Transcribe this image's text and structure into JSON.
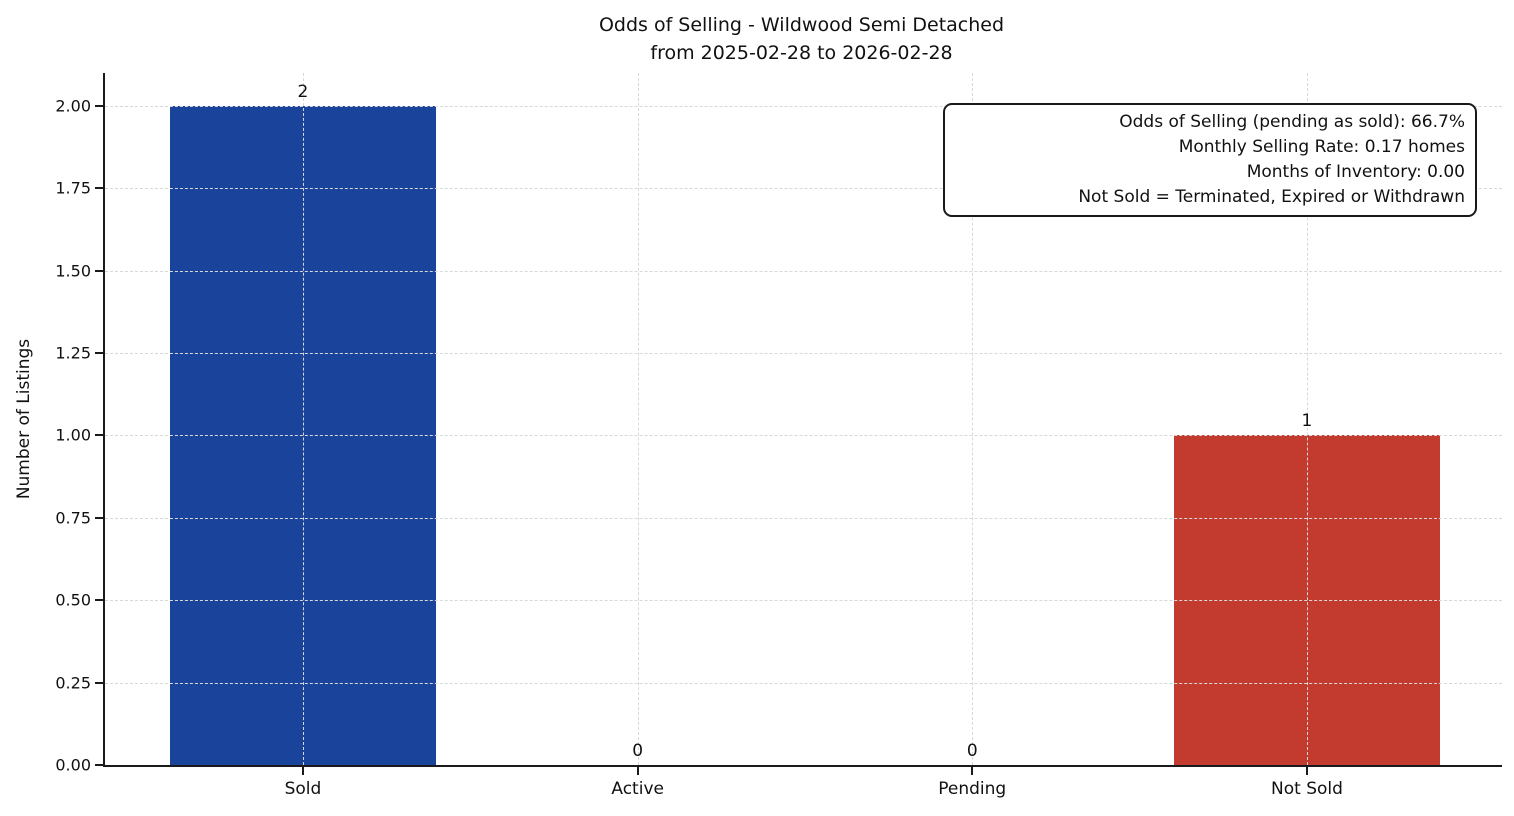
{
  "chart": {
    "title_line1": "Odds of Selling - Wildwood Semi Detached",
    "title_line2": "from 2025-02-28 to 2026-02-28",
    "ylabel": "Number of Listings"
  },
  "annotation_box": {
    "lines": [
      "Odds of Selling (pending as sold): 66.7%",
      "Monthly Selling Rate: 0.17 homes",
      "Months of Inventory: 0.00",
      "Not Sold = Terminated, Expired or Withdrawn"
    ]
  },
  "colors": {
    "sold_bar": "#1a449b",
    "not_sold_bar": "#c23b2e",
    "axis": "#1a1a1a",
    "grid": "#d8d8d8"
  },
  "chart_data": {
    "type": "bar",
    "title": "Odds of Selling - Wildwood Semi Detached\nfrom 2025-02-28 to 2026-02-28",
    "categories": [
      "Sold",
      "Active",
      "Pending",
      "Not Sold"
    ],
    "values": [
      2,
      0,
      0,
      1
    ],
    "bar_value_labels": [
      "2",
      "0",
      "0",
      "1"
    ],
    "bar_colors": [
      "#1a449b",
      null,
      null,
      "#c23b2e"
    ],
    "xlabel": "",
    "ylabel": "Number of Listings",
    "ylim": [
      0,
      2.1
    ],
    "yticks": [
      "0.00",
      "0.25",
      "0.50",
      "0.75",
      "1.00",
      "1.25",
      "1.50",
      "1.75",
      "2.00"
    ],
    "grid": true,
    "grid_style": "dashed",
    "legend": null,
    "annotations": [
      "Odds of Selling (pending as sold): 66.7%",
      "Monthly Selling Rate: 0.17 homes",
      "Months of Inventory: 0.00",
      "Not Sold = Terminated, Expired or Withdrawn"
    ],
    "annotation_position": "top-right"
  }
}
